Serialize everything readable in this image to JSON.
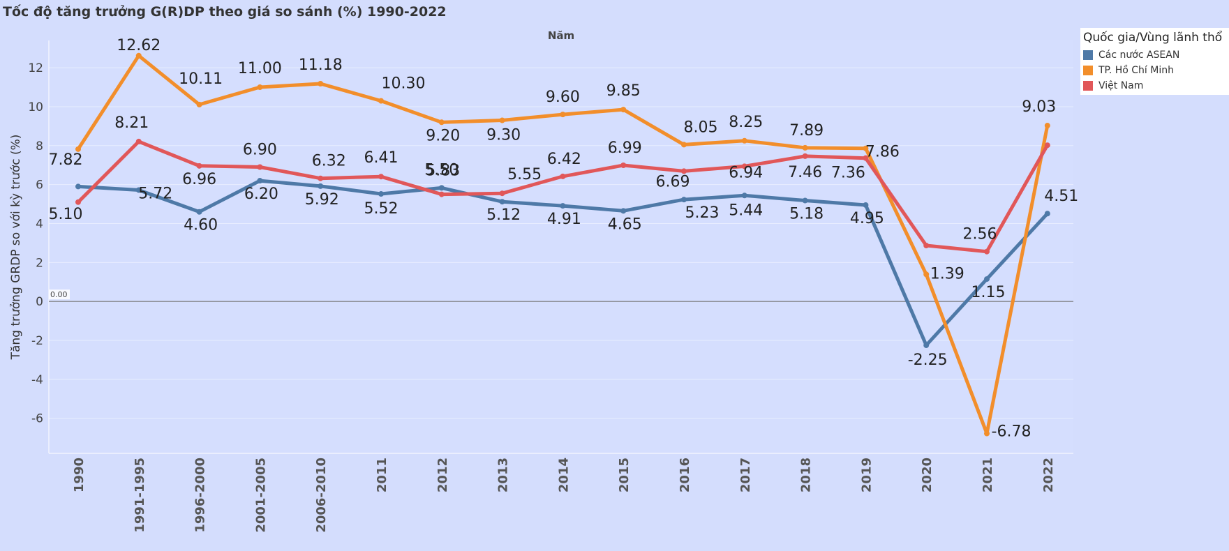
{
  "title": "Tốc độ tăng trưởng G(R)DP theo giá so sánh (%) 1990-2022",
  "legend": {
    "title": "Quốc gia/Vùng lãnh thổ",
    "items": [
      {
        "label": "Các nước ASEAN",
        "color": "#4e79a7"
      },
      {
        "label": "TP. Hồ Chí Minh",
        "color": "#f28e2b"
      },
      {
        "label": "Việt Nam",
        "color": "#e15759"
      }
    ]
  },
  "chart_data": {
    "type": "line",
    "title": "Tốc độ tăng trưởng G(R)DP theo giá so sánh (%) 1990-2022",
    "xlabel": "Năm",
    "ylabel": "Tăng trưởng GRDP so với kỳ trước (%)",
    "ylim": [
      -7.8,
      13.4
    ],
    "yticks": [
      12,
      10,
      8,
      6,
      4,
      2,
      0,
      -2,
      -4,
      -6
    ],
    "reference_line": {
      "value": 0,
      "label": "0.00"
    },
    "categories": [
      "1990",
      "1991-1995",
      "1996-2000",
      "2001-2005",
      "2006-2010",
      "2011",
      "2012",
      "2013",
      "2014",
      "2015",
      "2016",
      "2017",
      "2018",
      "2019",
      "2020",
      "2021",
      "2022"
    ],
    "series": [
      {
        "name": "Các nước ASEAN",
        "color": "#4e79a7",
        "values": [
          5.9,
          5.72,
          4.6,
          6.2,
          5.92,
          5.52,
          5.83,
          5.12,
          4.91,
          4.65,
          5.23,
          5.44,
          5.18,
          4.95,
          -2.25,
          1.15,
          4.51
        ],
        "labels": [
          null,
          "5.72",
          "4.60",
          "6.20",
          "5.92",
          "5.52",
          "5.83",
          "5.12",
          "4.91",
          "4.65",
          "5.23",
          "5.44",
          "5.18",
          "4.95",
          "-2.25",
          "1.15",
          "4.51"
        ]
      },
      {
        "name": "TP. Hồ Chí Minh",
        "color": "#f28e2b",
        "values": [
          7.82,
          12.62,
          10.11,
          11.0,
          11.18,
          10.3,
          9.2,
          9.3,
          9.6,
          9.85,
          8.05,
          8.25,
          7.89,
          7.86,
          1.39,
          -6.78,
          9.03
        ],
        "labels": [
          "7.82",
          "12.62",
          "10.11",
          "11.00",
          "11.18",
          "10.30",
          "9.20",
          "9.30",
          "9.60",
          "9.85",
          "8.05",
          "8.25",
          "7.89",
          "7.86",
          "1.39",
          "-6.78",
          "9.03"
        ]
      },
      {
        "name": "Việt Nam",
        "color": "#e15759",
        "values": [
          5.1,
          8.21,
          6.96,
          6.9,
          6.32,
          6.41,
          5.5,
          5.55,
          6.42,
          6.99,
          6.69,
          6.94,
          7.46,
          7.36,
          2.87,
          2.56,
          8.02
        ],
        "labels": [
          "5.10",
          "8.21",
          "6.96",
          "6.90",
          "6.32",
          "6.41",
          "5.50",
          "5.55",
          "6.42",
          "6.99",
          "6.69",
          "6.94",
          "7.46",
          "7.36",
          null,
          "2.56",
          null
        ]
      }
    ]
  }
}
